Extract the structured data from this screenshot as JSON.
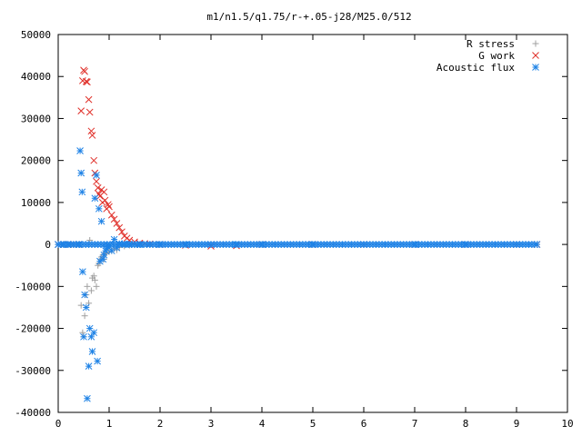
{
  "chart_data": {
    "type": "scatter",
    "title": "m1/n1.5/q1.75/r-+.05-j28/M25.0/512",
    "xlabel": "",
    "ylabel": "",
    "xlim": [
      0,
      10
    ],
    "ylim": [
      -40000,
      50000
    ],
    "x_ticks": [
      "0",
      "1",
      "2",
      "3",
      "4",
      "5",
      "6",
      "7",
      "8",
      "9",
      "10"
    ],
    "y_ticks": [
      "50000",
      "40000",
      "30000",
      "20000",
      "10000",
      "0",
      "-10000",
      "-20000",
      "-30000",
      "-40000"
    ],
    "grid": false,
    "legend_position": "top-right",
    "series": [
      {
        "name": "R stress",
        "marker": "plus",
        "color": "#a0a0a0",
        "x": [
          0.0,
          0.1,
          0.2,
          0.3,
          0.4,
          0.45,
          0.48,
          0.5,
          0.52,
          0.55,
          0.57,
          0.6,
          0.62,
          0.65,
          0.67,
          0.7,
          0.72,
          0.75,
          0.78,
          0.8,
          0.83,
          0.85,
          0.88,
          0.9,
          0.93,
          0.95,
          1.0,
          1.05,
          1.1,
          1.15,
          1.2,
          1.3,
          1.4,
          1.5,
          1.6,
          1.8,
          2.0,
          2.5,
          3.0,
          4.0,
          5.0,
          6.0,
          7.0,
          8.0,
          9.0,
          9.4
        ],
        "y": [
          0,
          0,
          0,
          0,
          0,
          -14500,
          -21000,
          -22000,
          -17000,
          -12000,
          -10000,
          -14000,
          1000,
          -11000,
          -8000,
          -7500,
          -8500,
          -10000,
          -5000,
          -4500,
          -3500,
          -3000,
          -2500,
          -3500,
          -2200,
          -2000,
          -1800,
          -1500,
          -1000,
          -1300,
          -700,
          -400,
          -200,
          -100,
          -50,
          0,
          0,
          0,
          0,
          0,
          0,
          0,
          0,
          0,
          0,
          0
        ]
      },
      {
        "name": "G work",
        "marker": "cross",
        "color": "#e0302a",
        "x": [
          0.0,
          0.1,
          0.2,
          0.3,
          0.4,
          0.45,
          0.48,
          0.5,
          0.52,
          0.55,
          0.57,
          0.6,
          0.62,
          0.65,
          0.67,
          0.7,
          0.72,
          0.75,
          0.78,
          0.8,
          0.82,
          0.85,
          0.87,
          0.9,
          0.92,
          0.95,
          0.98,
          1.0,
          1.05,
          1.1,
          1.15,
          1.2,
          1.25,
          1.3,
          1.35,
          1.4,
          1.5,
          1.6,
          1.7,
          1.8,
          2.0,
          2.5,
          3.0,
          3.5,
          4.0,
          5.0,
          6.0,
          7.0,
          8.0,
          9.0,
          9.4
        ],
        "y": [
          0,
          0,
          0,
          0,
          0,
          31800,
          39000,
          41500,
          41200,
          38800,
          38700,
          34500,
          31500,
          27000,
          26000,
          20000,
          17000,
          15000,
          13500,
          12000,
          11500,
          13000,
          10000,
          12500,
          10500,
          8500,
          9500,
          9000,
          7000,
          6000,
          5000,
          4000,
          3000,
          2000,
          1500,
          1000,
          600,
          300,
          200,
          100,
          0,
          -200,
          -400,
          -300,
          0,
          0,
          0,
          0,
          0,
          0,
          0
        ]
      },
      {
        "name": "Acoustic flux",
        "marker": "star",
        "color": "#1e82e6",
        "x": [
          0.0,
          0.1,
          0.2,
          0.3,
          0.4,
          0.43,
          0.45,
          0.47,
          0.48,
          0.5,
          0.52,
          0.55,
          0.57,
          0.6,
          0.62,
          0.65,
          0.67,
          0.7,
          0.72,
          0.75,
          0.77,
          0.8,
          0.82,
          0.85,
          0.88,
          0.9,
          0.93,
          0.95,
          0.98,
          1.0,
          1.05,
          1.1,
          1.15,
          1.2,
          1.3,
          1.4,
          1.5,
          1.6,
          1.8,
          2.0,
          2.5,
          3.0,
          3.5,
          4.0,
          5.0,
          6.0,
          7.0,
          8.0,
          9.0,
          9.4
        ],
        "y": [
          0,
          0,
          0,
          0,
          0,
          22300,
          17000,
          12500,
          -6500,
          -22000,
          -12000,
          -15000,
          -36700,
          -29000,
          -20000,
          -22000,
          -25500,
          -21000,
          11000,
          16500,
          -27800,
          8500,
          -4000,
          5500,
          -3500,
          -2500,
          -1500,
          -1000,
          -500,
          -300,
          -1500,
          1200,
          -800,
          200,
          100,
          50,
          0,
          0,
          0,
          0,
          0,
          0,
          0,
          0,
          0,
          0,
          0,
          0,
          0,
          0
        ]
      }
    ]
  }
}
